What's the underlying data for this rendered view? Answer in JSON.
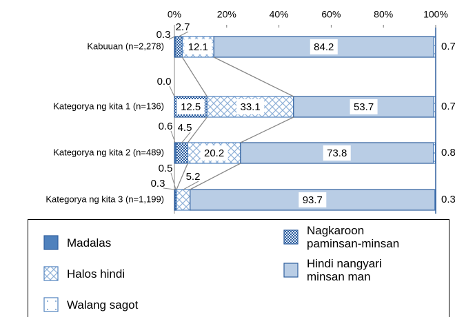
{
  "chart_data": {
    "type": "bar",
    "orientation": "horizontal",
    "stacked": true,
    "categories": [
      "Kabuuan (n=2,278)",
      "Kategorya ng kita 1 (n=136)",
      "Kategorya ng kita 2 (n=489)",
      "Kategorya ng kita 3 (n=1,199)"
    ],
    "xlim": [
      0,
      100
    ],
    "xticks": [
      {
        "value": 0,
        "label": "0%"
      },
      {
        "value": 20,
        "label": "20%"
      },
      {
        "value": 40,
        "label": "40%"
      },
      {
        "value": 60,
        "label": "60%"
      },
      {
        "value": 80,
        "label": "80%"
      },
      {
        "value": 100,
        "label": "100%"
      }
    ],
    "series": [
      {
        "name": "Madalas",
        "color": "#4f81bd",
        "values": [
          0.3,
          0.0,
          0.6,
          0.3
        ],
        "value_labels": [
          "0.3",
          "0.0",
          "0.6",
          "0.3"
        ]
      },
      {
        "name": "Nagkaroon paminsan-minsan",
        "color": "#4f81bd",
        "values": [
          2.7,
          12.5,
          4.5,
          0.5
        ],
        "value_labels": [
          "2.7",
          "12.5",
          "4.5",
          "0.5"
        ]
      },
      {
        "name": "Halos hindi",
        "color": "#b9cde5",
        "values": [
          12.1,
          33.1,
          20.2,
          5.2
        ],
        "value_labels": [
          "12.1",
          "33.1",
          "20.2",
          "5.2"
        ]
      },
      {
        "name": "Hindi nangyari minsan man",
        "color": "#b9cde5",
        "values": [
          84.2,
          53.7,
          73.8,
          93.7
        ],
        "value_labels": [
          "84.2",
          "53.7",
          "73.8",
          "93.7"
        ]
      },
      {
        "name": "Walang sagot",
        "color": "#ffffff",
        "values": [
          0.7,
          0.7,
          0.8,
          0.3
        ],
        "value_labels": [
          "0.7",
          "0.7",
          "0.8",
          "0.3"
        ]
      }
    ],
    "legend_position": "bottom"
  }
}
